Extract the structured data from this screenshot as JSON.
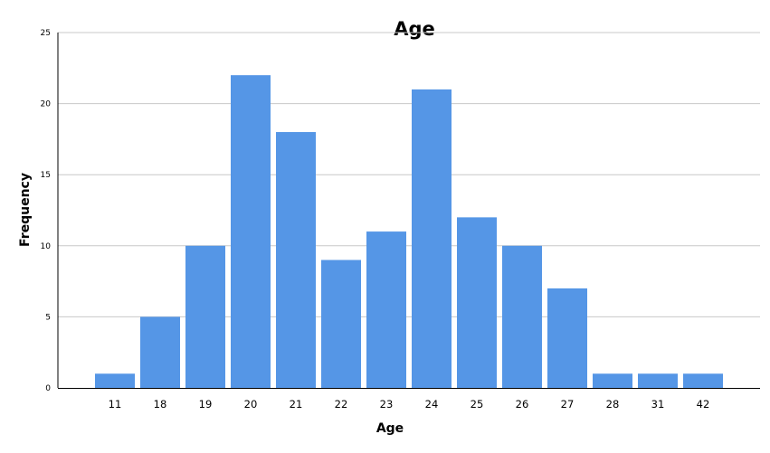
{
  "chart_data": {
    "type": "bar",
    "title": "Age",
    "xlabel": "Age",
    "ylabel": "Frequency",
    "categories": [
      "11",
      "18",
      "19",
      "20",
      "21",
      "22",
      "23",
      "24",
      "25",
      "26",
      "27",
      "28",
      "31",
      "42"
    ],
    "values": [
      1,
      5,
      10,
      22,
      18,
      9,
      11,
      21,
      12,
      10,
      7,
      1,
      1,
      1
    ],
    "ylim": [
      0,
      25
    ],
    "yticks": [
      "0",
      "5",
      "10",
      "15",
      "20",
      "25"
    ],
    "grid": true,
    "colors": {
      "bar": "#5596e6",
      "grid": "#c8c8c8",
      "axis": "#000000",
      "background": "#ffffff"
    }
  }
}
